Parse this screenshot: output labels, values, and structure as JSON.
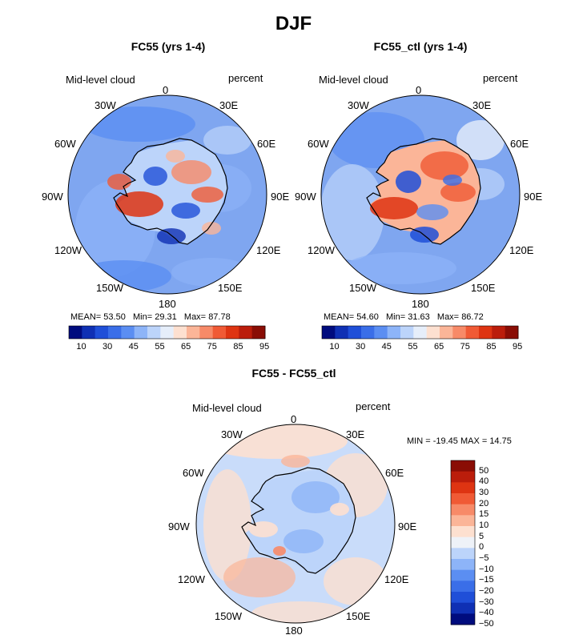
{
  "title": "DJF",
  "panels": [
    {
      "title": "FC55 (yrs 1-4)",
      "variable": "Mid-level cloud",
      "units": "percent",
      "lon_labels": [
        "0",
        "30E",
        "60E",
        "90E",
        "120E",
        "150E",
        "180",
        "150W",
        "120W",
        "90W",
        "60W",
        "30W"
      ],
      "stats": {
        "mean_label": "MEAN=",
        "mean": "53.50",
        "min_label": "Min=",
        "min": "29.31",
        "max_label": "Max=",
        "max": "87.78"
      },
      "colorbar_ticks": [
        "10",
        "30",
        "45",
        "55",
        "65",
        "75",
        "85",
        "95"
      ]
    },
    {
      "title": "FC55_ctl (yrs 1-4)",
      "variable": "Mid-level cloud",
      "units": "percent",
      "lon_labels": [
        "0",
        "30E",
        "60E",
        "90E",
        "120E",
        "150E",
        "180",
        "150W",
        "120W",
        "90W",
        "60W",
        "30W"
      ],
      "stats": {
        "mean_label": "MEAN=",
        "mean": "54.60",
        "min_label": "Min=",
        "min": "31.63",
        "max_label": "Max=",
        "max": "86.72"
      },
      "colorbar_ticks": [
        "10",
        "30",
        "45",
        "55",
        "65",
        "75",
        "85",
        "95"
      ]
    },
    {
      "title": "FC55 - FC55_ctl",
      "variable": "Mid-level cloud",
      "units": "percent",
      "lon_labels": [
        "0",
        "30E",
        "60E",
        "90E",
        "120E",
        "150E",
        "180",
        "150W",
        "120W",
        "90W",
        "60W",
        "30W"
      ],
      "stats_text": "MIN = -19.45 MAX =   14.75",
      "colorbar_ticks": [
        "50",
        "40",
        "30",
        "20",
        "15",
        "10",
        "5",
        "0",
        "−5",
        "−10",
        "−15",
        "−20",
        "−30",
        "−40",
        "−50"
      ]
    }
  ],
  "colors": {
    "abs_scale": [
      "#000c7e",
      "#0f30b4",
      "#1f4fd8",
      "#3a6ee8",
      "#5b8ef2",
      "#8db4f8",
      "#bcd4fa",
      "#e6eefa",
      "#fde0d0",
      "#fbb598",
      "#f78a68",
      "#f05a35",
      "#de3412",
      "#bb1d0b",
      "#8a0d05"
    ],
    "diff_scale": [
      "#8a0d05",
      "#bb1d0b",
      "#de3412",
      "#f05a35",
      "#f78a68",
      "#fbb598",
      "#fde0d0",
      "#eef2f8",
      "#bcd4fa",
      "#8db4f8",
      "#5b8ef2",
      "#3a6ee8",
      "#1f4fd8",
      "#0f30b4",
      "#000c7e"
    ],
    "ocean_abs": "#7fa6f0",
    "ocean_diff": "#c9dcfa"
  }
}
